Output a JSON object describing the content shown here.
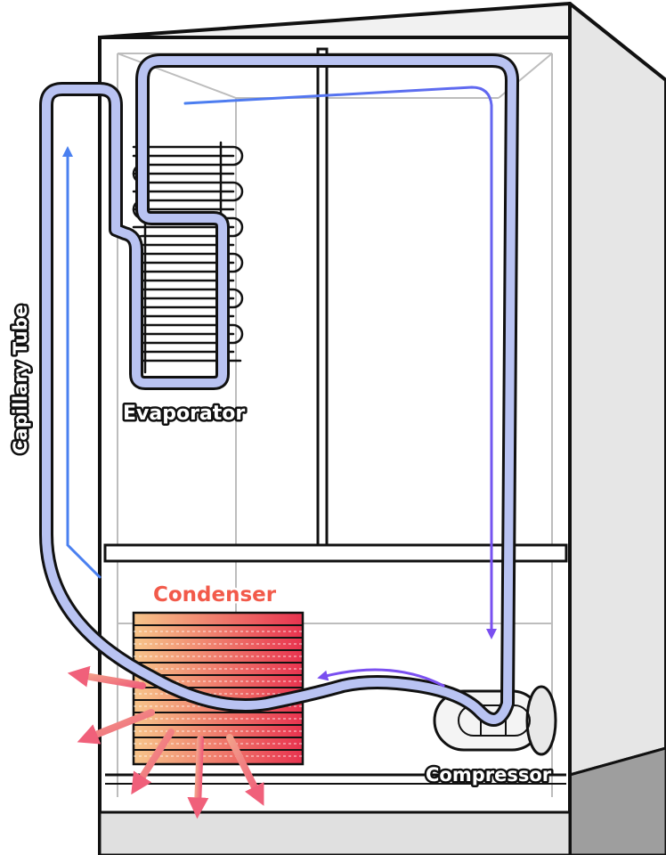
{
  "labels": {
    "evaporator": "Evaporator",
    "condenser": "Condenser",
    "compressor": "Compressor",
    "capillary_tube": "Capillary Tube"
  },
  "colors": {
    "outline": "#111111",
    "cabinet_front": "#ffffff",
    "cabinet_side": "#e6e6e6",
    "cabinet_base": "#9e9e9e",
    "inner_lines": "#bdbdbd",
    "tube_fill": "#b9c3f2",
    "flow_blue": "#4a80f0",
    "flow_purple": "#7a4ff0",
    "condenser_hot": "#e8334f",
    "condenser_warm": "#f7c58a",
    "heat_arrow": "#f06a6a",
    "condenser_label": "#f25a4a"
  },
  "icons": {
    "flow": "arrow-icon",
    "heat": "heat-arrow-icon"
  }
}
